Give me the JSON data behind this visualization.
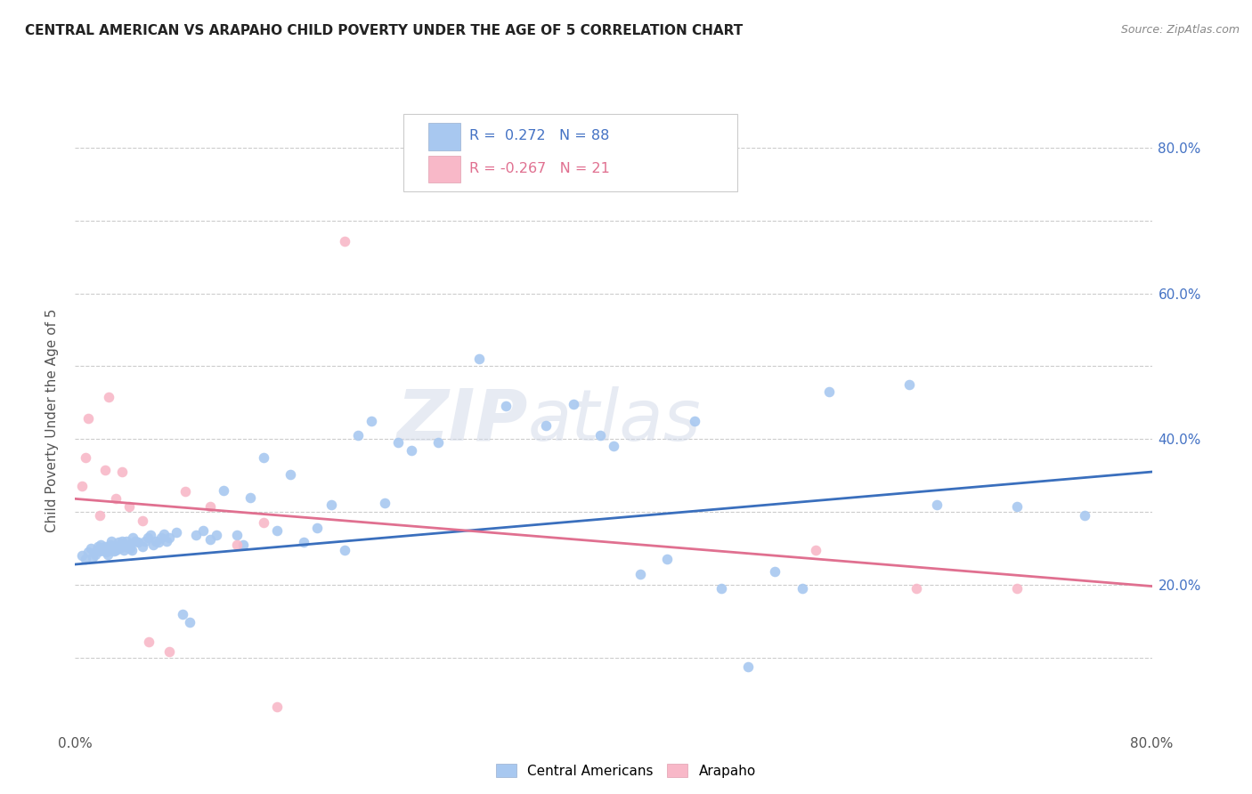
{
  "title": "CENTRAL AMERICAN VS ARAPAHO CHILD POVERTY UNDER THE AGE OF 5 CORRELATION CHART",
  "source": "Source: ZipAtlas.com",
  "ylabel": "Child Poverty Under the Age of 5",
  "xlim": [
    0.0,
    0.8
  ],
  "ylim": [
    0.0,
    0.85
  ],
  "blue_color": "#a8c8f0",
  "pink_color": "#f8b8c8",
  "trendline_blue": "#3a6fbd",
  "trendline_pink": "#e07090",
  "legend_blue_label": "Central Americans",
  "legend_pink_label": "Arapaho",
  "R_blue": "0.272",
  "N_blue": "88",
  "R_pink": "-0.267",
  "N_pink": "21",
  "watermark_zip": "ZIP",
  "watermark_atlas": "atlas",
  "blue_trendline_x": [
    0.0,
    0.8
  ],
  "blue_trendline_y": [
    0.228,
    0.355
  ],
  "pink_trendline_x": [
    0.0,
    0.8
  ],
  "pink_trendline_y": [
    0.318,
    0.198
  ],
  "blue_scatter_x": [
    0.005,
    0.008,
    0.01,
    0.012,
    0.013,
    0.015,
    0.016,
    0.017,
    0.018,
    0.019,
    0.02,
    0.021,
    0.022,
    0.023,
    0.024,
    0.025,
    0.026,
    0.027,
    0.028,
    0.029,
    0.03,
    0.031,
    0.032,
    0.033,
    0.034,
    0.035,
    0.036,
    0.037,
    0.038,
    0.04,
    0.041,
    0.042,
    0.043,
    0.045,
    0.047,
    0.05,
    0.052,
    0.054,
    0.056,
    0.058,
    0.06,
    0.062,
    0.064,
    0.066,
    0.068,
    0.07,
    0.075,
    0.08,
    0.085,
    0.09,
    0.095,
    0.1,
    0.105,
    0.11,
    0.12,
    0.125,
    0.13,
    0.14,
    0.15,
    0.16,
    0.17,
    0.18,
    0.19,
    0.2,
    0.21,
    0.22,
    0.23,
    0.24,
    0.25,
    0.27,
    0.3,
    0.32,
    0.35,
    0.37,
    0.39,
    0.4,
    0.42,
    0.44,
    0.46,
    0.48,
    0.5,
    0.52,
    0.54,
    0.56,
    0.62,
    0.64,
    0.7,
    0.75
  ],
  "blue_scatter_y": [
    0.24,
    0.235,
    0.245,
    0.25,
    0.238,
    0.242,
    0.248,
    0.252,
    0.246,
    0.255,
    0.25,
    0.248,
    0.252,
    0.245,
    0.242,
    0.248,
    0.255,
    0.26,
    0.25,
    0.246,
    0.248,
    0.252,
    0.258,
    0.25,
    0.255,
    0.26,
    0.248,
    0.252,
    0.26,
    0.255,
    0.25,
    0.248,
    0.265,
    0.26,
    0.258,
    0.252,
    0.26,
    0.265,
    0.268,
    0.255,
    0.26,
    0.258,
    0.265,
    0.27,
    0.26,
    0.265,
    0.272,
    0.16,
    0.148,
    0.268,
    0.275,
    0.262,
    0.268,
    0.33,
    0.268,
    0.255,
    0.32,
    0.375,
    0.275,
    0.352,
    0.258,
    0.278,
    0.31,
    0.248,
    0.405,
    0.425,
    0.312,
    0.395,
    0.385,
    0.395,
    0.51,
    0.445,
    0.418,
    0.448,
    0.405,
    0.39,
    0.215,
    0.235,
    0.425,
    0.195,
    0.088,
    0.218,
    0.195,
    0.465,
    0.475,
    0.31,
    0.308,
    0.295
  ],
  "pink_scatter_x": [
    0.005,
    0.008,
    0.01,
    0.018,
    0.022,
    0.025,
    0.03,
    0.035,
    0.04,
    0.05,
    0.055,
    0.07,
    0.082,
    0.1,
    0.12,
    0.14,
    0.15,
    0.2,
    0.55,
    0.625,
    0.7
  ],
  "pink_scatter_y": [
    0.335,
    0.375,
    0.428,
    0.295,
    0.358,
    0.458,
    0.318,
    0.355,
    0.308,
    0.288,
    0.122,
    0.108,
    0.328,
    0.308,
    0.255,
    0.285,
    0.032,
    0.672,
    0.248,
    0.195,
    0.195
  ]
}
